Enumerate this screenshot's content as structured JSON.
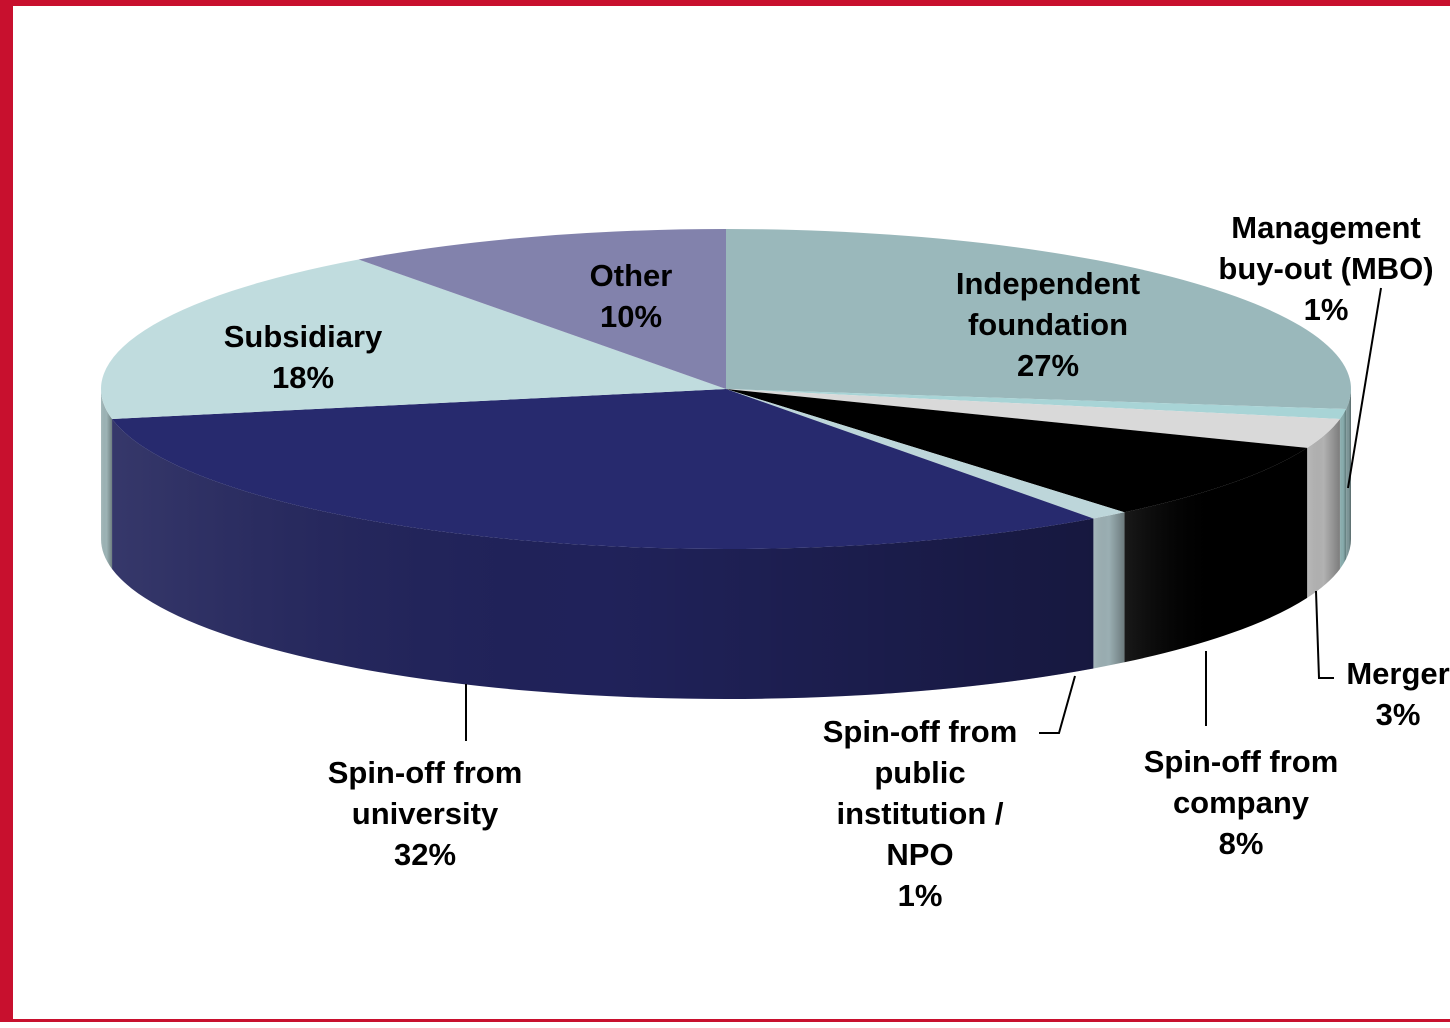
{
  "chart_data": {
    "type": "pie",
    "title": "",
    "slices": [
      {
        "label": [
          "Independent",
          "foundation"
        ],
        "value": 27,
        "value_label": "27%",
        "color": "#9ab8bb"
      },
      {
        "label": [
          "Management",
          "buy-out (MBO)"
        ],
        "value": 1,
        "value_label": "1%",
        "color": "#a8d4d6"
      },
      {
        "label": [
          "Merger"
        ],
        "value": 3,
        "value_label": "3%",
        "color": "#d9d9d9"
      },
      {
        "label": [
          "Spin-off from",
          "company"
        ],
        "value": 8,
        "value_label": "8%",
        "color": "#000000"
      },
      {
        "label": [
          "Spin-off from",
          "public",
          "institution /",
          "NPO"
        ],
        "value": 1,
        "value_label": "1%",
        "color": "#bdd6da"
      },
      {
        "label": [
          "Spin-off from",
          "university"
        ],
        "value": 32,
        "value_label": "32%",
        "color": "#272a6e"
      },
      {
        "label": [
          "Subsidiary"
        ],
        "value": 18,
        "value_label": "18%",
        "color": "#c0dcde"
      },
      {
        "label": [
          "Other"
        ],
        "value": 10,
        "value_label": "10%",
        "color": "#8282ac"
      }
    ],
    "start_angle_deg": -90,
    "direction": "clockwise",
    "style": "3d-tilted-pie",
    "legend": "none",
    "frame_color": "#c8102e"
  }
}
